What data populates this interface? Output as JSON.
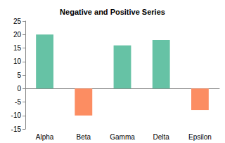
{
  "chart_data": {
    "type": "bar",
    "title": "Negative and Positive Series",
    "categories": [
      "Alpha",
      "Beta",
      "Gamma",
      "Delta",
      "Epsilon"
    ],
    "values": [
      20,
      -10,
      16,
      18,
      -8
    ],
    "colors": [
      "#66c2a5",
      "#fc8d62",
      "#66c2a5",
      "#66c2a5",
      "#fc8d62"
    ],
    "ylim": [
      -15,
      25
    ],
    "yticks": [
      -15,
      -10,
      -5,
      0,
      5,
      10,
      15,
      20,
      25
    ],
    "grid": false
  }
}
